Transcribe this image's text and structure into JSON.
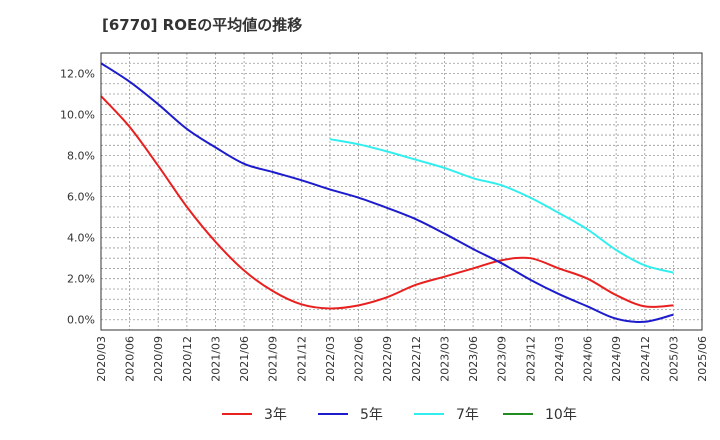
{
  "chart_data": {
    "type": "line",
    "title": "[6770]  ROEの平均値の推移",
    "xlabel": "",
    "ylabel": "",
    "ylim": [
      -0.5,
      13.0
    ],
    "yticks": [
      0.0,
      2.0,
      4.0,
      6.0,
      8.0,
      10.0,
      12.0
    ],
    "ytick_labels": [
      "0.0%",
      "2.0%",
      "4.0%",
      "6.0%",
      "8.0%",
      "10.0%",
      "12.0%"
    ],
    "x": [
      "2020/03",
      "2020/06",
      "2020/09",
      "2020/12",
      "2021/03",
      "2021/06",
      "2021/09",
      "2021/12",
      "2022/03",
      "2022/06",
      "2022/09",
      "2022/12",
      "2023/03",
      "2023/06",
      "2023/09",
      "2023/12",
      "2024/03",
      "2024/06",
      "2024/09",
      "2024/12",
      "2025/03",
      "2025/06"
    ],
    "grid": true,
    "legend_position": "bottom",
    "series": [
      {
        "name": "3年",
        "color": "#e8201f",
        "values": [
          10.9,
          9.4,
          7.5,
          5.5,
          3.8,
          2.4,
          1.4,
          0.75,
          0.55,
          0.7,
          1.1,
          1.7,
          2.1,
          2.5,
          2.9,
          3.0,
          2.5,
          2.0,
          1.2,
          0.65,
          0.7,
          null
        ]
      },
      {
        "name": "5年",
        "color": "#1c1ccc",
        "values": [
          12.5,
          11.6,
          10.5,
          9.3,
          8.4,
          7.6,
          7.2,
          6.8,
          6.35,
          5.95,
          5.45,
          4.9,
          4.2,
          3.45,
          2.75,
          1.95,
          1.25,
          0.65,
          0.05,
          -0.1,
          0.25,
          null
        ]
      },
      {
        "name": "7年",
        "color": "#33eeee",
        "values": [
          null,
          null,
          null,
          null,
          null,
          null,
          null,
          null,
          8.8,
          8.55,
          8.2,
          7.8,
          7.4,
          6.9,
          6.55,
          5.95,
          5.2,
          4.4,
          3.4,
          2.65,
          2.3,
          null
        ]
      },
      {
        "name": "10年",
        "color": "#228b22",
        "values": [
          null,
          null,
          null,
          null,
          null,
          null,
          null,
          null,
          null,
          null,
          null,
          null,
          null,
          null,
          null,
          null,
          null,
          null,
          null,
          null,
          null,
          null
        ]
      }
    ]
  }
}
